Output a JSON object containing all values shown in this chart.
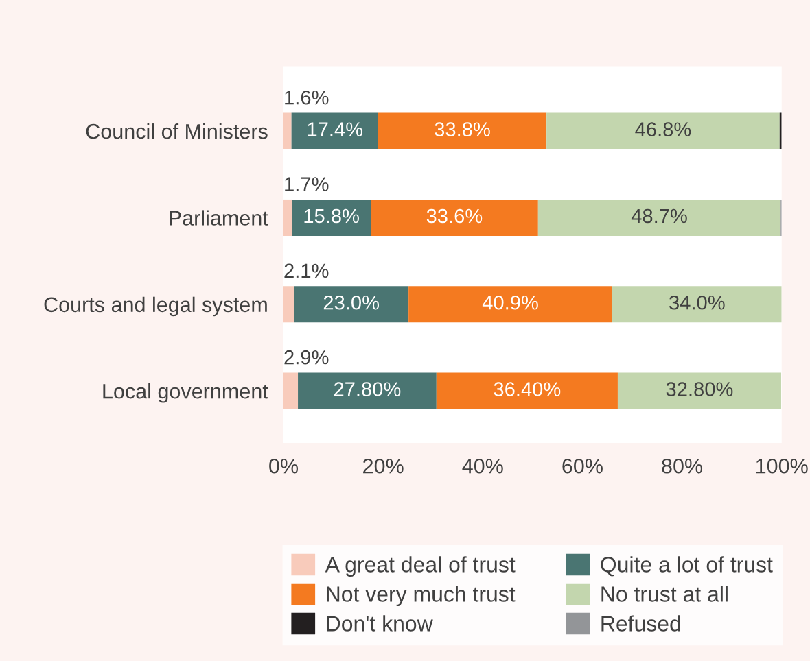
{
  "chart_data": {
    "type": "bar",
    "orientation": "horizontal",
    "stacked": true,
    "categories": [
      "Council of Ministers",
      "Parliament",
      "Courts and legal system",
      "Local government"
    ],
    "series": [
      {
        "name": "A great deal of trust",
        "color": "#f8cbbb",
        "values": [
          1.6,
          1.7,
          2.1,
          2.9
        ],
        "value_labels": [
          "1.6%",
          "1.7%",
          "2.1%",
          "2.9%"
        ]
      },
      {
        "name": "Quite a lot of trust",
        "color": "#4a7572",
        "values": [
          17.4,
          15.8,
          23.0,
          27.8
        ],
        "value_labels": [
          "17.4%",
          "15.8%",
          "23.0%",
          "27.80%"
        ]
      },
      {
        "name": "Not very much trust",
        "color": "#f47a20",
        "values": [
          33.8,
          33.6,
          40.9,
          36.4
        ],
        "value_labels": [
          "33.8%",
          "33.6%",
          "40.9%",
          "36.40%"
        ]
      },
      {
        "name": "No trust at all",
        "color": "#c3d6ae",
        "values": [
          46.8,
          48.7,
          34.0,
          32.8
        ],
        "value_labels": [
          "46.8%",
          "48.7%",
          "34.0%",
          "32.80%"
        ]
      },
      {
        "name": "Don't know",
        "color": "#231f20",
        "values": [
          0.4,
          0,
          0,
          0
        ]
      },
      {
        "name": "Refused",
        "color": "#939598",
        "values": [
          0,
          0.2,
          null,
          null
        ]
      }
    ],
    "xlim": [
      0,
      100
    ],
    "xticks": [
      {
        "value": 0,
        "label": "0%"
      },
      {
        "value": 20,
        "label": "20%"
      },
      {
        "value": 40,
        "label": "40%"
      },
      {
        "value": 60,
        "label": "60%"
      },
      {
        "value": 80,
        "label": "80%"
      },
      {
        "value": 100,
        "label": "100%"
      }
    ],
    "grid": false,
    "legend": "bottom"
  }
}
